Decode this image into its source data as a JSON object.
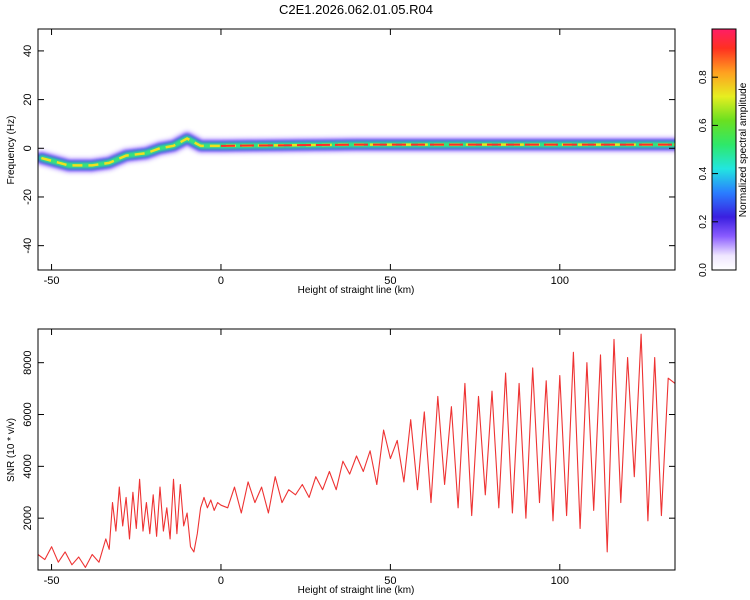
{
  "title": "C2E1.2026.062.01.05.R04",
  "chart_data": [
    {
      "type": "heatmap",
      "name": "spectrogram",
      "xlabel": "Height of straight line (km)",
      "ylabel": "Frequency (Hz)",
      "xlim": [
        -54,
        134
      ],
      "ylim": [
        -50,
        49
      ],
      "xticks": [
        -50,
        0,
        50,
        100
      ],
      "yticks": [
        -40,
        -20,
        0,
        20,
        40
      ],
      "ridge": [
        {
          "x": -53,
          "y": -4
        },
        {
          "x": -45,
          "y": -7
        },
        {
          "x": -38,
          "y": -7
        },
        {
          "x": -33,
          "y": -6
        },
        {
          "x": -28,
          "y": -3
        },
        {
          "x": -22,
          "y": -2
        },
        {
          "x": -18,
          "y": 0
        },
        {
          "x": -14,
          "y": 1
        },
        {
          "x": -10,
          "y": 4
        },
        {
          "x": -6,
          "y": 1
        },
        {
          "x": 0,
          "y": 1
        },
        {
          "x": 40,
          "y": 1.5
        },
        {
          "x": 80,
          "y": 1.5
        },
        {
          "x": 134,
          "y": 1.5
        }
      ],
      "colorbar": {
        "label": "Normalized spectral amplitude",
        "range": [
          0.0,
          1.0
        ],
        "ticks": [
          "0.0",
          "0.2",
          "0.4",
          "0.6",
          "0.8"
        ]
      }
    },
    {
      "type": "line",
      "name": "snr",
      "xlabel": "Height of straight line (km)",
      "ylabel": "SNR (10 * v/v)",
      "xlim": [
        -54,
        134
      ],
      "ylim": [
        0,
        9300
      ],
      "xticks": [
        -50,
        0,
        50,
        100
      ],
      "yticks": [
        2000,
        4000,
        6000,
        8000
      ],
      "series": [
        {
          "name": "SNR",
          "color": "#ee3333",
          "x": [
            -54,
            -52,
            -50,
            -48,
            -46,
            -44,
            -42,
            -40,
            -38,
            -36,
            -34,
            -33,
            -32,
            -31,
            -30,
            -29,
            -28,
            -27,
            -26,
            -25,
            -24,
            -23,
            -22,
            -21,
            -20,
            -19,
            -18,
            -17,
            -16,
            -15,
            -14,
            -13,
            -12,
            -11,
            -10,
            -9,
            -8,
            -7,
            -6,
            -5,
            -4,
            -3,
            -2,
            -1,
            0,
            2,
            4,
            6,
            8,
            10,
            12,
            14,
            16,
            18,
            20,
            22,
            24,
            26,
            28,
            30,
            32,
            34,
            36,
            38,
            40,
            42,
            44,
            46,
            48,
            50,
            52,
            54,
            56,
            58,
            60,
            62,
            64,
            66,
            68,
            70,
            72,
            74,
            76,
            78,
            80,
            82,
            84,
            86,
            88,
            90,
            92,
            94,
            96,
            98,
            100,
            102,
            104,
            106,
            108,
            110,
            112,
            114,
            116,
            118,
            120,
            122,
            124,
            126,
            128,
            130,
            132,
            134
          ],
          "values": [
            600,
            400,
            900,
            300,
            700,
            200,
            500,
            100,
            600,
            300,
            1200,
            800,
            2600,
            1500,
            3200,
            1700,
            2800,
            1200,
            3000,
            1600,
            3500,
            1500,
            2600,
            1400,
            2900,
            1300,
            3200,
            1500,
            2400,
            1200,
            3500,
            1400,
            3300,
            1700,
            2200,
            900,
            700,
            1400,
            2400,
            2800,
            2400,
            2700,
            2300,
            2600,
            2500,
            2400,
            3200,
            2200,
            3400,
            2600,
            3200,
            2200,
            3600,
            2600,
            3100,
            2900,
            3300,
            2800,
            3600,
            3100,
            3800,
            3100,
            4200,
            3700,
            4400,
            3800,
            4600,
            3300,
            5400,
            4300,
            5000,
            3400,
            5800,
            3100,
            6100,
            2600,
            6700,
            3300,
            6300,
            2400,
            7200,
            2100,
            6700,
            2900,
            6900,
            2400,
            7600,
            2200,
            7200,
            2000,
            7800,
            2600,
            7300,
            1900,
            7500,
            2100,
            8400,
            1600,
            8000,
            2300,
            8300,
            700,
            8900,
            2600,
            8200,
            3600,
            9100,
            1900,
            8200,
            2100,
            7400,
            7200
          ]
        }
      ]
    }
  ]
}
